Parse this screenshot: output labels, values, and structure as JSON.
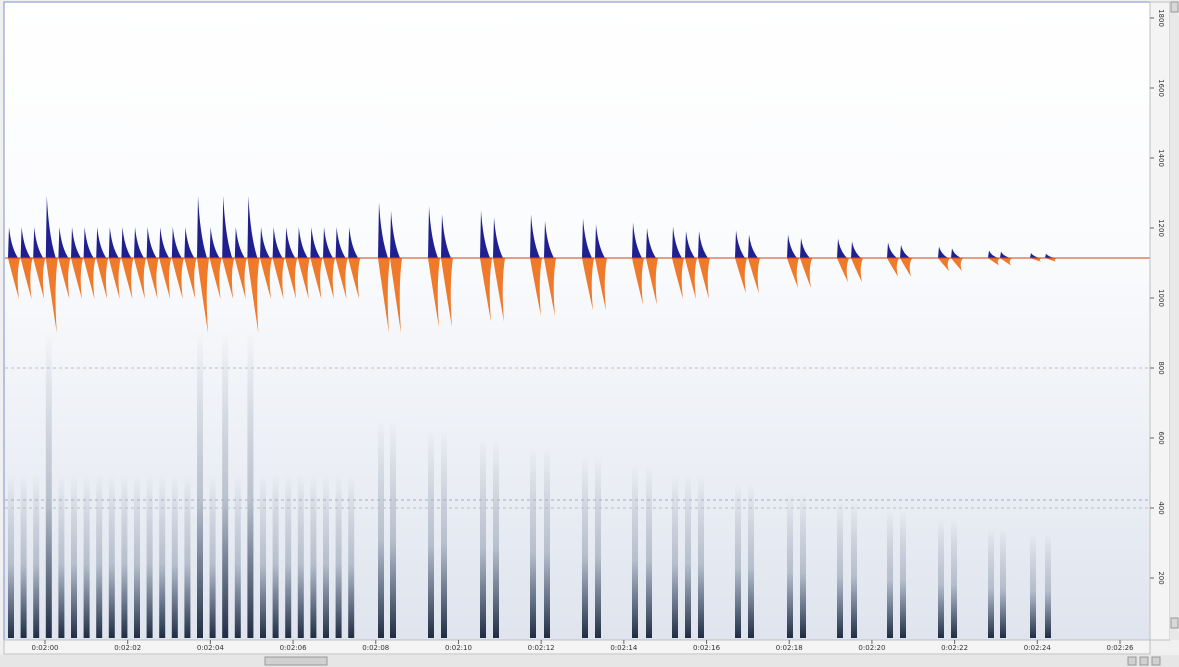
{
  "time_axis": {
    "labels": [
      "0:02:00",
      "0:02:02",
      "0:02:04",
      "0:02:06",
      "0:02:08",
      "0:02:10",
      "0:02:12",
      "0:02:14",
      "0:02:16",
      "0:02:18",
      "0:02:20",
      "0:02:22",
      "0:02:24",
      "0:02:26"
    ]
  },
  "frequency_axis": {
    "labels": [
      "1800",
      "1600",
      "1400",
      "1200",
      "1000",
      "800",
      "600",
      "400",
      "200"
    ]
  }
}
